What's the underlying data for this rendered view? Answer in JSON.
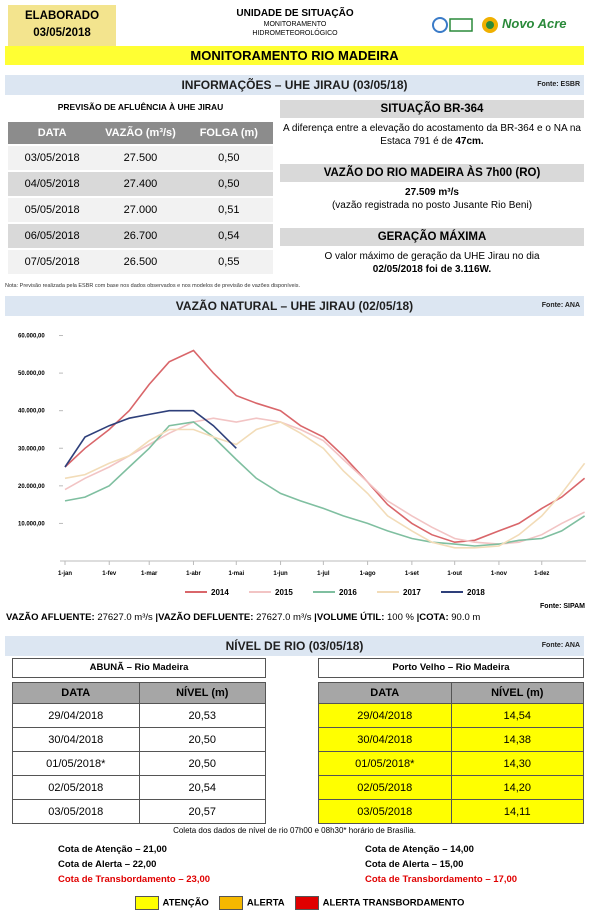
{
  "header": {
    "elaborado": "ELABORADO",
    "date": "03/05/2018",
    "unit": "UNIDADE DE SITUAÇÃO",
    "unit_sub1": "MONITORAMENTO",
    "unit_sub2": "HIDROMETEOROLÓGICO",
    "logo": "Novo Acre",
    "banner": "MONITORAMENTO RIO MADEIRA"
  },
  "info": {
    "title": "INFORMAÇÕES – UHE JIRAU (03/05/18)",
    "source": "Fonte: ESBR",
    "table": {
      "title": "PREVISÃO DE AFLUÊNCIA À UHE JIRAU",
      "headers": [
        "DATA",
        "VAZÃO (m³/s)",
        "FOLGA (m)"
      ],
      "rows": [
        [
          "03/05/2018",
          "27.500",
          "0,50"
        ],
        [
          "04/05/2018",
          "27.400",
          "0,50"
        ],
        [
          "05/05/2018",
          "27.000",
          "0,51"
        ],
        [
          "06/05/2018",
          "26.700",
          "0,54"
        ],
        [
          "07/05/2018",
          "26.500",
          "0,55"
        ]
      ]
    },
    "situacao": {
      "title": "SITUAÇÃO BR-364",
      "parts": [
        {
          "text": "A diferença entre a elevação do acostamento da BR-364 e o NA na Estaca 791 é de ",
          "bold": false
        },
        {
          "text": "47cm.",
          "bold": true
        }
      ]
    },
    "vazao": {
      "title": "VAZÃO DO RIO MADEIRA ÀS 7h00 (RO)",
      "parts": [
        {
          "text": "27.509  m³/s",
          "bold": true
        },
        {
          "text": "(vazão registrada no posto Jusante Rio Beni)",
          "bold": false
        }
      ]
    },
    "geracao": {
      "title": "GERAÇÃO MÁXIMA",
      "parts": [
        {
          "text": "O valor máximo de geração da UHE Jirau no dia ",
          "bold": false
        },
        {
          "text": "02/05/2018 foi de 3.116W.",
          "bold": true
        }
      ]
    },
    "note": "Nota: Previsão realizada pela ESBR com base nos dados observados e nos modelos de previsão de vazões disponíveis."
  },
  "chart_data": {
    "type": "line",
    "title": "VAZÃO NATURAL – UHE JIRAU (02/05/18)",
    "source": "Fonte: ANA",
    "x": [
      1,
      15,
      32,
      46,
      60,
      74,
      91,
      105,
      121,
      135,
      152,
      166,
      182,
      196,
      213,
      227,
      244,
      258,
      274,
      288,
      305,
      319,
      335,
      349,
      365
    ],
    "xlim": [
      1,
      366
    ],
    "xticks": [
      {
        "value": 1,
        "label": "1-jan"
      },
      {
        "value": 32,
        "label": "1-fev"
      },
      {
        "value": 60,
        "label": "1-mar"
      },
      {
        "value": 91,
        "label": "1-abr"
      },
      {
        "value": 121,
        "label": "1-mai"
      },
      {
        "value": 152,
        "label": "1-jun"
      },
      {
        "value": 182,
        "label": "1-jul"
      },
      {
        "value": 213,
        "label": "1-ago"
      },
      {
        "value": 244,
        "label": "1-set"
      },
      {
        "value": 274,
        "label": "1-out"
      },
      {
        "value": 305,
        "label": "1-nov"
      },
      {
        "value": 335,
        "label": "1-dez"
      }
    ],
    "ylim": [
      0,
      62000
    ],
    "yticks": [
      {
        "value": 10000,
        "label": "10.000,00"
      },
      {
        "value": 20000,
        "label": "20.000,00"
      },
      {
        "value": 30000,
        "label": "30.000,00"
      },
      {
        "value": 40000,
        "label": "40.000,00"
      },
      {
        "value": 50000,
        "label": "50.000,00"
      },
      {
        "value": 60000,
        "label": "60.000,00"
      }
    ],
    "series": [
      {
        "name": "2014",
        "color": "#d9666a",
        "values": [
          25000,
          30000,
          35000,
          40000,
          47000,
          53000,
          56000,
          50000,
          44000,
          42000,
          40000,
          36000,
          33000,
          28000,
          21000,
          15000,
          10000,
          7000,
          5000,
          5500,
          8000,
          10000,
          14000,
          17000,
          22000
        ]
      },
      {
        "name": "2015",
        "color": "#f2c4c4",
        "values": [
          19000,
          22000,
          25000,
          28000,
          31000,
          34000,
          37000,
          38000,
          37000,
          38000,
          37000,
          35000,
          32000,
          27000,
          21000,
          16000,
          12000,
          9000,
          6000,
          5000,
          4500,
          5000,
          7000,
          10000,
          13000
        ]
      },
      {
        "name": "2016",
        "color": "#7fbfa0",
        "values": [
          16000,
          17000,
          20000,
          25000,
          30000,
          36000,
          37000,
          33000,
          27000,
          22000,
          18000,
          16000,
          14000,
          12000,
          10000,
          8000,
          6000,
          5000,
          4500,
          4000,
          4500,
          5500,
          6000,
          8000,
          12000
        ]
      },
      {
        "name": "2017",
        "color": "#f2dcb8",
        "values": [
          22000,
          23000,
          26000,
          28000,
          32000,
          35000,
          35000,
          33000,
          31000,
          35000,
          37000,
          34000,
          30000,
          24000,
          18000,
          12000,
          8000,
          5000,
          3500,
          3500,
          4000,
          7000,
          12000,
          18000,
          26000
        ]
      },
      {
        "name": "2018",
        "color": "#2e3f7a",
        "values": [
          25000,
          33000,
          36000,
          38000,
          39000,
          40000,
          40000,
          36000,
          30000,
          null,
          null,
          null,
          null,
          null,
          null,
          null,
          null,
          null,
          null,
          null,
          null,
          null,
          null,
          null,
          null
        ]
      }
    ]
  },
  "flow": {
    "source": "Fonte: SIPAM",
    "items": [
      {
        "label": "VAZÃO AFLUENTE: ",
        "value": "27627.0 m³/s "
      },
      {
        "label": "|VAZÃO DEFLUENTE: ",
        "value": "27627.0 m³/s "
      },
      {
        "label": "|VOLUME ÚTIL: ",
        "value": "100 % "
      },
      {
        "label": "|COTA: ",
        "value": "90.0 m"
      }
    ]
  },
  "nivel": {
    "title": "NÍVEL DE RIO (03/05/18)",
    "source": "Fonte: ANA",
    "tables": [
      {
        "title": "ABUNÃ – Rio Madeira",
        "headers": [
          "DATA",
          "NÍVEL (m)"
        ],
        "row_color": "#ffffff",
        "rows": [
          [
            "29/04/2018",
            "20,53"
          ],
          [
            "30/04/2018",
            "20,50"
          ],
          [
            "01/05/2018*",
            "20,50"
          ],
          [
            "02/05/2018",
            "20,54"
          ],
          [
            "03/05/2018",
            "20,57"
          ]
        ],
        "cotas": [
          {
            "text": "Cota de Atenção – 21,00",
            "color": "#000000"
          },
          {
            "text": "Cota de Alerta – 22,00",
            "color": "#000000"
          },
          {
            "text": "Cota de Transbordamento – 23,00",
            "color": "#e00000"
          }
        ]
      },
      {
        "title": "Porto Velho – Rio Madeira",
        "headers": [
          "DATA",
          "NÍVEL (m)"
        ],
        "row_color": "#ffff00",
        "rows": [
          [
            "29/04/2018",
            "14,54"
          ],
          [
            "30/04/2018",
            "14,38"
          ],
          [
            "01/05/2018*",
            "14,30"
          ],
          [
            "02/05/2018",
            "14,20"
          ],
          [
            "03/05/2018",
            "14,11"
          ]
        ],
        "cotas": [
          {
            "text": "Cota de Atenção – 14,00",
            "color": "#000000"
          },
          {
            "text": "Cota de Alerta – 15,00",
            "color": "#000000"
          },
          {
            "text": "Cota de Transbordamento – 17,00",
            "color": "#e00000"
          }
        ]
      }
    ],
    "note": "Coleta dos dados de nível de rio 07h00 e 08h30* horário de Brasília.",
    "legend": [
      {
        "label": "ATENÇÃO",
        "color": "#ffff00"
      },
      {
        "label": "ALERTA",
        "color": "#f5b800"
      },
      {
        "label": "ALERTA TRANSBORDAMENTO",
        "color": "#e00000"
      }
    ]
  }
}
